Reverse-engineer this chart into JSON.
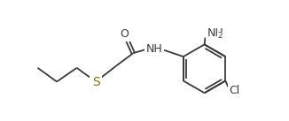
{
  "bg_color": "#ffffff",
  "line_color": "#3a3a3a",
  "atom_colors": {
    "O": "#3a3a3a",
    "N": "#3a3a3a",
    "S": "#8B7000",
    "Cl": "#3a3a3a",
    "NH2_color": "#3a3a3a",
    "NH_color": "#3a3a3a"
  },
  "font_size_atom": 9,
  "font_size_subscript": 6.5,
  "lw": 1.3
}
